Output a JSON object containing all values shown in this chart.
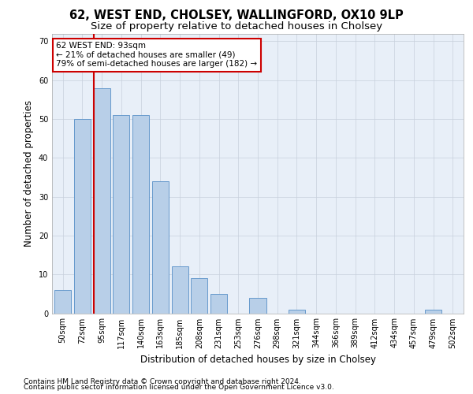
{
  "title1": "62, WEST END, CHOLSEY, WALLINGFORD, OX10 9LP",
  "title2": "Size of property relative to detached houses in Cholsey",
  "xlabel": "Distribution of detached houses by size in Cholsey",
  "ylabel": "Number of detached properties",
  "bar_labels": [
    "50sqm",
    "72sqm",
    "95sqm",
    "117sqm",
    "140sqm",
    "163sqm",
    "185sqm",
    "208sqm",
    "231sqm",
    "253sqm",
    "276sqm",
    "298sqm",
    "321sqm",
    "344sqm",
    "366sqm",
    "389sqm",
    "412sqm",
    "434sqm",
    "457sqm",
    "479sqm",
    "502sqm"
  ],
  "bar_values": [
    6,
    50,
    58,
    51,
    51,
    34,
    12,
    9,
    5,
    0,
    4,
    0,
    1,
    0,
    0,
    0,
    0,
    0,
    0,
    1,
    0
  ],
  "bar_color": "#b8cfe8",
  "bar_edge_color": "#6699cc",
  "ylim": [
    0,
    72
  ],
  "yticks": [
    0,
    10,
    20,
    30,
    40,
    50,
    60,
    70
  ],
  "red_line_bar_index": 2,
  "red_line_color": "#cc0000",
  "annotation_text": "62 WEST END: 93sqm\n← 21% of detached houses are smaller (49)\n79% of semi-detached houses are larger (182) →",
  "annotation_box_color": "#ffffff",
  "annotation_box_edge": "#cc0000",
  "footer1": "Contains HM Land Registry data © Crown copyright and database right 2024.",
  "footer2": "Contains public sector information licensed under the Open Government Licence v3.0.",
  "bg_color": "#ffffff",
  "plot_bg_color": "#e8eff8",
  "grid_color": "#c8d0dc",
  "title1_fontsize": 10.5,
  "title2_fontsize": 9.5,
  "xlabel_fontsize": 8.5,
  "ylabel_fontsize": 8.5,
  "tick_fontsize": 7,
  "annotation_fontsize": 7.5,
  "footer_fontsize": 6.5
}
